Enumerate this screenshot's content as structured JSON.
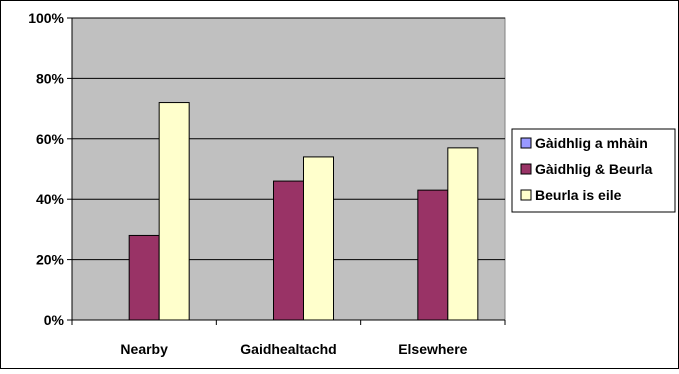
{
  "chart_data": {
    "type": "bar",
    "categories": [
      "Nearby",
      "Gaidhealtachd",
      "Elsewhere"
    ],
    "series": [
      {
        "name": "Gàidhlig a mhàin",
        "values": [
          0,
          0,
          0
        ],
        "color": "#9999ff"
      },
      {
        "name": "Gàidhlig & Beurla",
        "values": [
          28,
          46,
          43
        ],
        "color": "#993366"
      },
      {
        "name": "Beurla is eile",
        "values": [
          72,
          54,
          57
        ],
        "color": "#ffffcc"
      }
    ],
    "ylim": [
      0,
      100
    ],
    "yticks": [
      0,
      20,
      40,
      60,
      80,
      100
    ],
    "ytick_labels": [
      "0%",
      "20%",
      "40%",
      "60%",
      "80%",
      "100%"
    ],
    "plot_background": "#c0c0c0",
    "grid": true,
    "legend_position": "right"
  }
}
